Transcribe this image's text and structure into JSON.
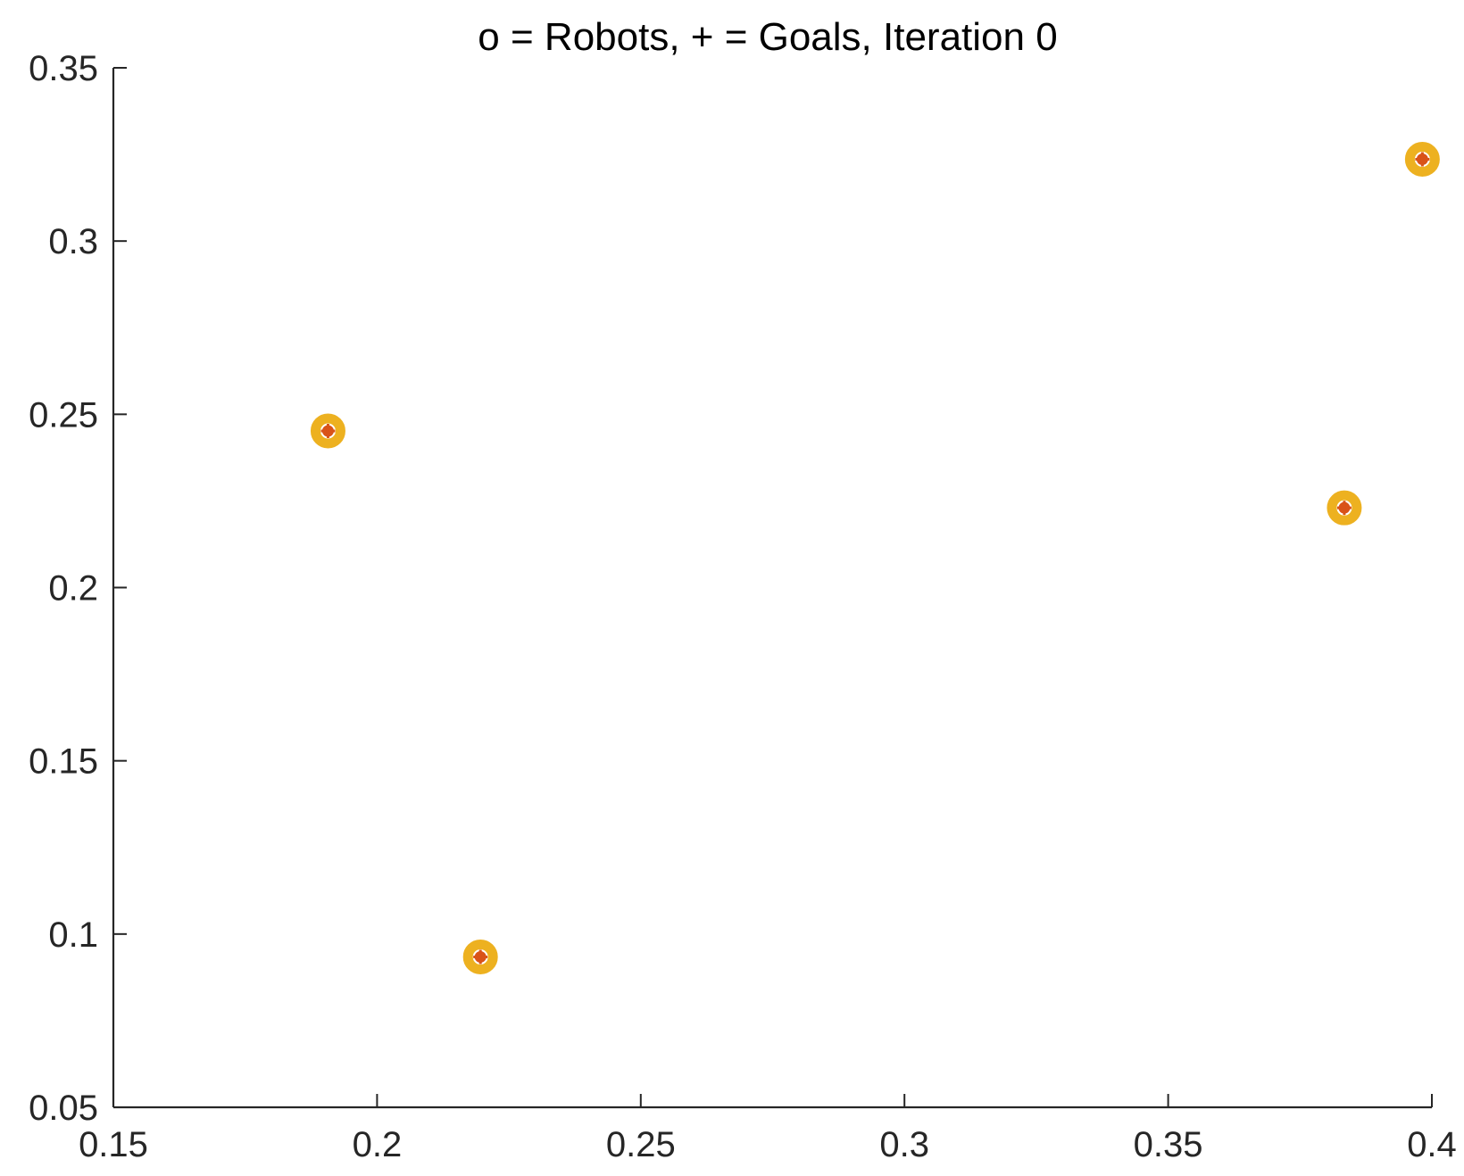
{
  "chart_data": {
    "type": "scatter",
    "title": "o = Robots, + = Goals, Iteration 0",
    "xlabel": "",
    "ylabel": "",
    "xlim": [
      0.15,
      0.4
    ],
    "ylim": [
      0.05,
      0.35
    ],
    "xticks": [
      0.15,
      0.2,
      0.25,
      0.3,
      0.35,
      0.4
    ],
    "yticks": [
      0.05,
      0.1,
      0.15,
      0.2,
      0.25,
      0.3,
      0.35
    ],
    "xtick_labels": [
      "0.15",
      "0.2",
      "0.25",
      "0.3",
      "0.35",
      "0.4"
    ],
    "ytick_labels": [
      "0.05",
      "0.1",
      "0.15",
      "0.2",
      "0.25",
      "0.3",
      "0.35"
    ],
    "grid": false,
    "box": "left-bottom axes only",
    "series": [
      {
        "marker": "circle",
        "color": "#EDB120",
        "x": [
          0.1907,
          0.2196,
          0.3834,
          0.3982
        ],
        "y": [
          0.2452,
          0.0934,
          0.223,
          0.3236
        ]
      },
      {
        "marker": "plus",
        "color": "#D95319",
        "x": [
          0.1907,
          0.2196,
          0.3834,
          0.3982
        ],
        "y": [
          0.2452,
          0.0934,
          0.223,
          0.3236
        ]
      }
    ]
  }
}
